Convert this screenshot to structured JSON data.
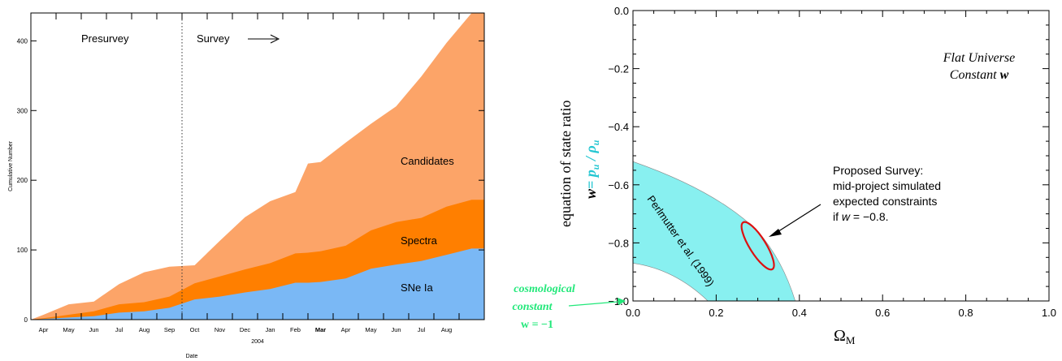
{
  "chart_data": [
    {
      "type": "area",
      "stacked": true,
      "xlabel": "Date",
      "year_label": "2004",
      "ylabel": "Cumulative Number",
      "ylim": [
        0,
        440
      ],
      "y_ticks": [
        0,
        100,
        200,
        300,
        400
      ],
      "month_labels": [
        "Apr",
        "May",
        "Jun",
        "Jul",
        "Aug",
        "Sep",
        "Oct",
        "Nov",
        "Dec",
        "Jan",
        "Feb",
        "Mar",
        "Apr",
        "May",
        "Jun",
        "Jul",
        "Aug"
      ],
      "bold_month_index": 11,
      "x": [
        -0.5,
        0,
        1,
        2,
        3,
        4,
        5,
        6,
        7,
        8,
        9,
        10,
        10.5,
        11,
        12,
        13,
        14,
        15,
        16,
        17,
        17.5
      ],
      "series": [
        {
          "name": "SNe Ia",
          "color": "#7ab8f5",
          "values": [
            0,
            1,
            3,
            5,
            10,
            12,
            17,
            29,
            33,
            39,
            44,
            53,
            53,
            54,
            59,
            73,
            79,
            84,
            93,
            102,
            102
          ]
        },
        {
          "name": "Spectra",
          "color": "#ff7f00",
          "values": [
            0,
            2,
            7,
            12,
            22,
            25,
            33,
            52,
            62,
            72,
            81,
            95,
            96,
            98,
            106,
            128,
            140,
            146,
            162,
            172,
            172
          ]
        },
        {
          "name": "Candidates",
          "color": "#fca468",
          "values": [
            0,
            7,
            22,
            26,
            51,
            68,
            76,
            78,
            113,
            147,
            170,
            183,
            224,
            226,
            254,
            281,
            306,
            349,
            397,
            440,
            440
          ]
        }
      ],
      "divider_x": 5.5,
      "annotations": {
        "presurvey": "Presurvey",
        "survey": "Survey"
      }
    },
    {
      "type": "line",
      "xlabel_main": "Ω",
      "xlabel_sub": "M",
      "ylabel_text": "equation of state ratio",
      "ylabel_w": "w",
      "ylabel_eq": "= p",
      "ylabel_u1": "u",
      "ylabel_slash": " / ρ",
      "ylabel_u2": "u",
      "xlim": [
        0,
        1
      ],
      "ylim": [
        -1,
        0
      ],
      "x_tick_labels": [
        "0.0",
        "0.2",
        "0.4",
        "0.6",
        "0.8",
        "1.0"
      ],
      "y_tick_labels": [
        "0.0",
        "−0.2",
        "−0.4",
        "−0.6",
        "−0.8",
        "−1.0"
      ],
      "title_lines": [
        "Flat Universe",
        "Constant "
      ],
      "title_w": "w",
      "band_label": "Perlmutter et al. (1999)",
      "band_color": "#88f0f0",
      "band_upper": [
        [
          0,
          -0.52
        ],
        [
          0.2,
          -0.66
        ],
        [
          0.3,
          -0.76
        ],
        [
          0.39,
          -1.0
        ]
      ],
      "band_lower": [
        [
          0,
          -0.87
        ],
        [
          0.1,
          -0.92
        ],
        [
          0.18,
          -1.0
        ]
      ],
      "ellipse": {
        "cx": 0.3,
        "cy": -0.81,
        "color": "#dd1111"
      },
      "survey_note": [
        "Proposed Survey:",
        "mid-project simulated",
        "expected constraints",
        "if ",
        "w",
        " = −0.8."
      ],
      "cosmo_label": [
        "cosmological",
        "constant",
        "w = −1"
      ],
      "cosmo_color": "#22e87a"
    }
  ]
}
